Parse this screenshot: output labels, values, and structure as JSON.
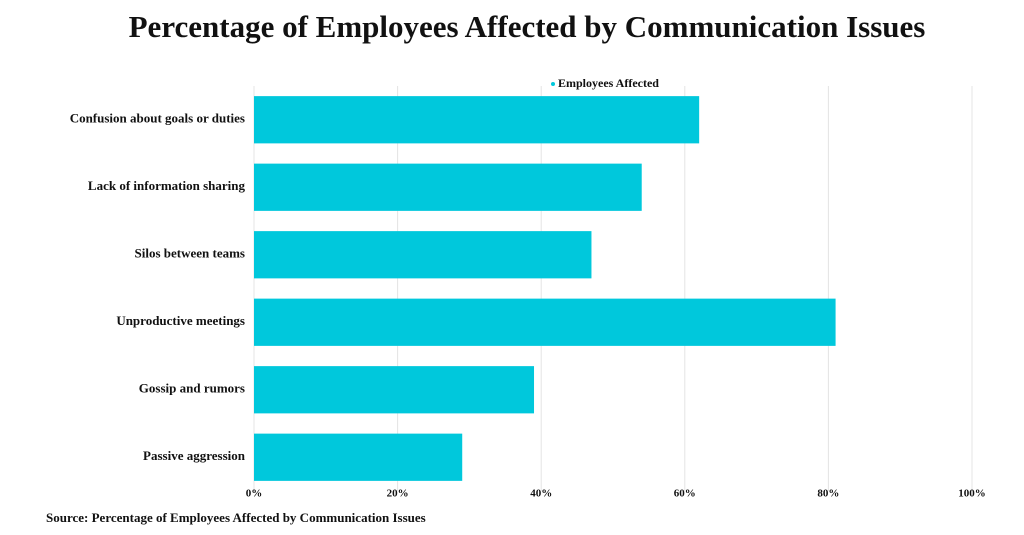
{
  "chart_data": {
    "type": "hbar",
    "title": "Percentage of Employees Affected by Communication Issues",
    "source": "Source: Percentage of Employees Affected by Communication Issues",
    "categories": [
      "Confusion about goals or duties",
      "Lack of information sharing",
      "Silos between teams",
      "Unproductive meetings",
      "Gossip and rumors",
      "Passive aggression"
    ],
    "series": [
      {
        "name": "Employees Affected",
        "color": "#00c8dc",
        "values": [
          62,
          54,
          47,
          81,
          39,
          29
        ]
      }
    ],
    "xlim": [
      0,
      100
    ],
    "xticks": [
      {
        "value": 0,
        "label": "0%"
      },
      {
        "value": 20,
        "label": "20%"
      },
      {
        "value": 40,
        "label": "40%"
      },
      {
        "value": 60,
        "label": "60%"
      },
      {
        "value": 80,
        "label": "80%"
      },
      {
        "value": 100,
        "label": "100%"
      }
    ],
    "grid": true,
    "legend": "top"
  }
}
